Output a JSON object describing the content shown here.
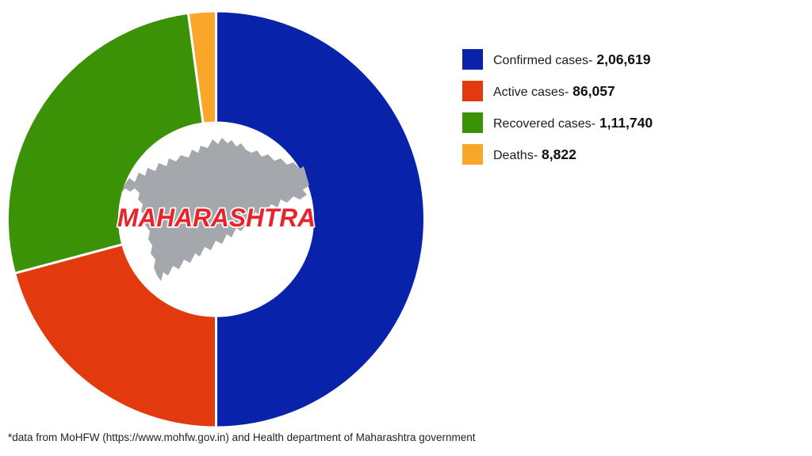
{
  "chart_data": {
    "type": "pie",
    "variant": "donut",
    "title": "",
    "center_label": "MAHARASHTRA",
    "direction": "clockwise",
    "start_angle_deg": 0,
    "inner_radius_ratio": 0.464,
    "legend_position": "right",
    "slices": [
      {
        "legend_label": "Confirmed cases-",
        "display_value": "2,06,619",
        "value": 206619,
        "color": "#0823aa"
      },
      {
        "legend_label": "Active cases-",
        "display_value": "86,057",
        "value": 86057,
        "color": "#e2390f"
      },
      {
        "legend_label": "Recovered cases-",
        "display_value": "1,11,740",
        "value": 111740,
        "color": "#3b9206"
      },
      {
        "legend_label": "Deaths-",
        "display_value": "8,822",
        "value": 8822,
        "color": "#f8a72b"
      }
    ],
    "annotations": [
      "*data from MoHFW (https://www.mohfw.gov.in) and Health department of Maharashtra government"
    ]
  },
  "map": {
    "label": "maharashtra-state-silhouette",
    "fill": "#a4a7ac"
  },
  "center_label": {
    "text": "MAHARASHTRA",
    "color": "#e8232b"
  },
  "footnote": {
    "text": "*data from MoHFW (https://www.mohfw.gov.in) and Health department of Maharashtra government"
  }
}
